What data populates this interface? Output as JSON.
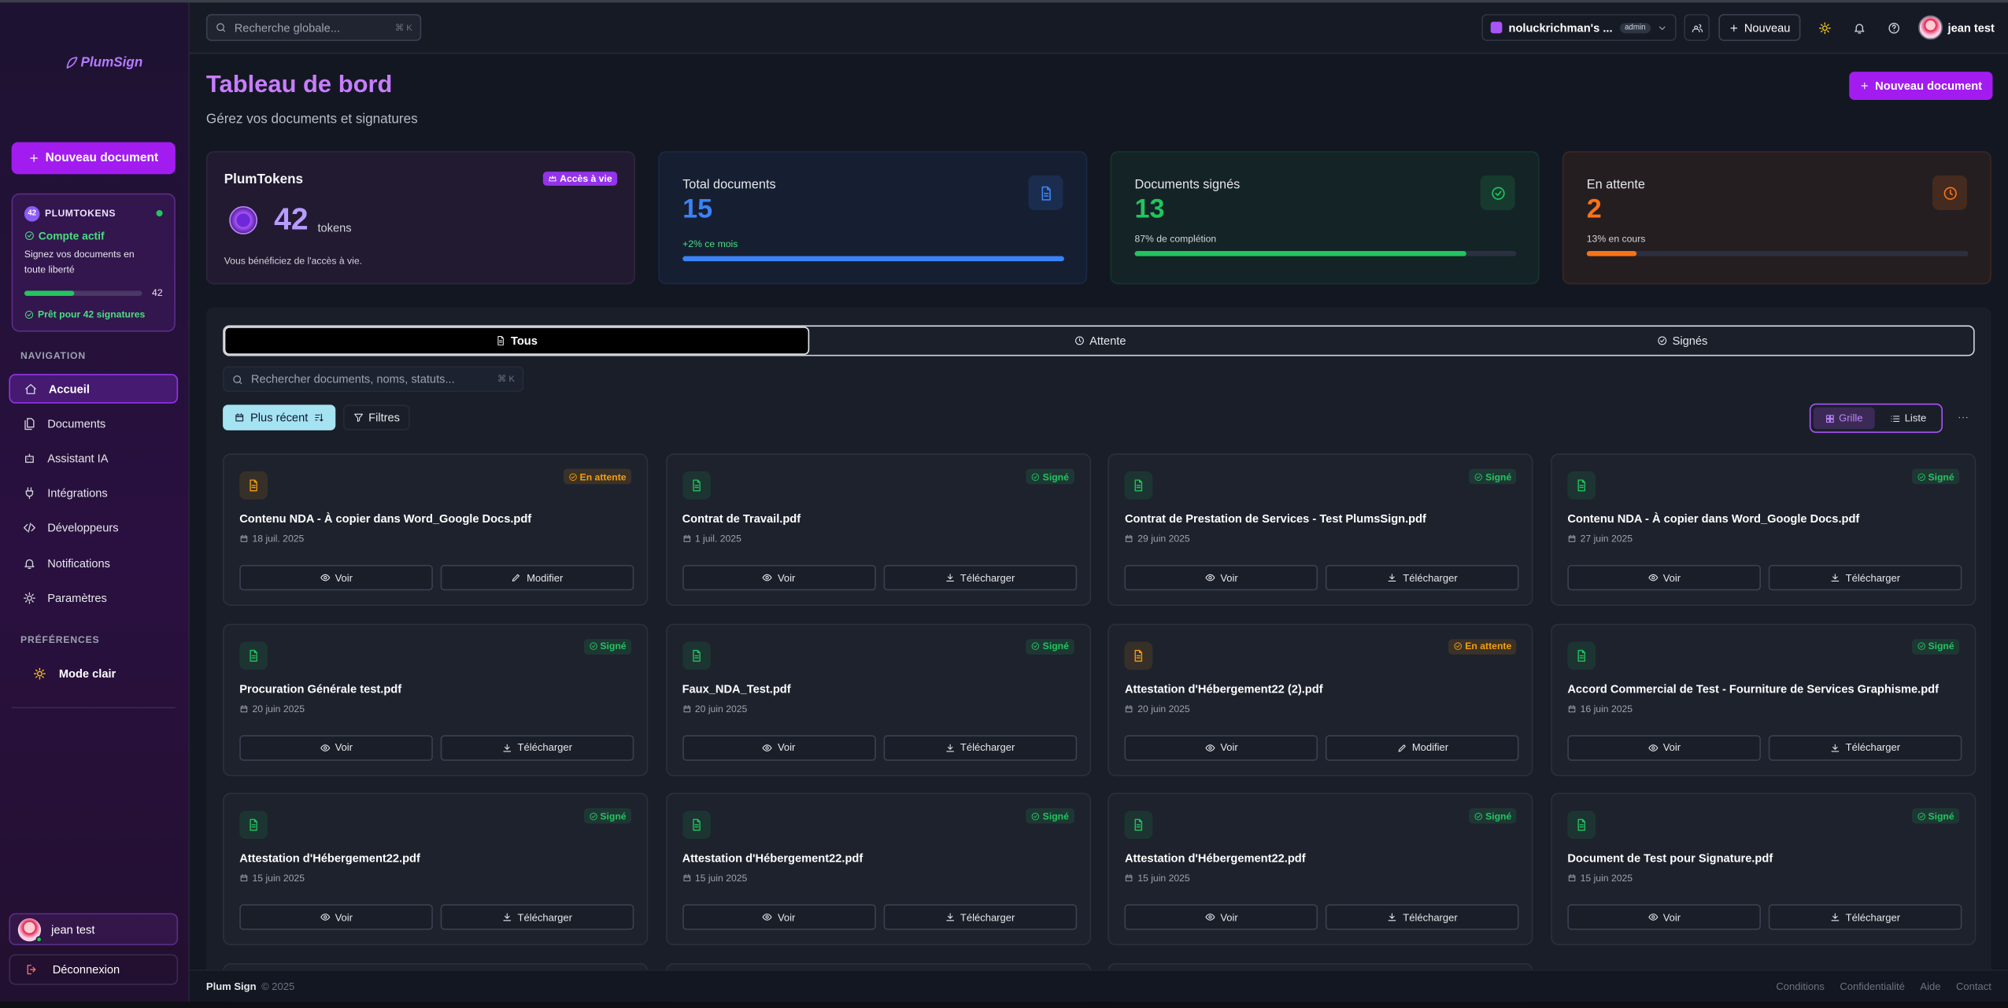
{
  "sidebar": {
    "logo": "PlumSign",
    "new_document": "Nouveau document",
    "tokens": {
      "badge": "42",
      "title": "PLUMTOKENS",
      "status": "Compte actif",
      "description": "Signez vos documents en toute liberté",
      "count": 42,
      "ready": "Prêt pour 42 signatures"
    },
    "nav_title": "NAVIGATION",
    "nav": [
      "Accueil",
      "Documents",
      "Assistant IA",
      "Intégrations",
      "Développeurs",
      "Notifications",
      "Paramètres"
    ],
    "prefs_title": "PRÉFÉRENCES",
    "theme": "Mode clair",
    "user": "jean test",
    "logout": "Déconnexion"
  },
  "topbar": {
    "search": "Recherche globale...",
    "shortcut": "⌘ K",
    "workspace": "noluckrichman's ...",
    "role": "admin",
    "new": "Nouveau",
    "user": "jean test"
  },
  "header": {
    "title": "Tableau de bord",
    "subtitle": "Gérez vos documents et signatures",
    "new_document": "Nouveau document"
  },
  "stats": {
    "tokens": {
      "title": "PlumTokens",
      "badge": "Accès à vie",
      "value": 42,
      "unit": "tokens",
      "note": "Vous bénéficiez de l'accès à vie."
    },
    "cards": [
      {
        "label": "Total documents",
        "value": 15,
        "note": "+2% ce mois",
        "progress": 100,
        "color": "#3b82f6"
      },
      {
        "label": "Documents signés",
        "value": 13,
        "note": "87% de complétion",
        "progress": 87,
        "color": "#22c55e"
      },
      {
        "label": "En attente",
        "value": 2,
        "note": "13% en cours",
        "progress": 13,
        "color": "#f97316"
      }
    ]
  },
  "tabs": [
    "Tous",
    "Attente",
    "Signés"
  ],
  "search": {
    "placeholder": "Rechercher documents, noms, statuts...",
    "shortcut": "⌘ K"
  },
  "sort": "Plus récent",
  "filters": "Filtres",
  "views": [
    "Grille",
    "Liste"
  ],
  "documents": [
    {
      "status": "En attente",
      "color": "#f59e0b",
      "name": "Contenu NDA - À copier dans Word_Google Docs.pdf",
      "date": "18 juil. 2025",
      "actions": [
        "Voir",
        "Modifier"
      ]
    },
    {
      "status": "Signé",
      "color": "#22c55e",
      "name": "Contrat de Travail.pdf",
      "date": "1 juil. 2025",
      "actions": [
        "Voir",
        "Télécharger"
      ]
    },
    {
      "status": "Signé",
      "color": "#22c55e",
      "name": "Contrat de Prestation de Services - Test PlumsSign.pdf",
      "date": "29 juin 2025",
      "actions": [
        "Voir",
        "Télécharger"
      ]
    },
    {
      "status": "Signé",
      "color": "#22c55e",
      "name": "Contenu NDA - À copier dans Word_Google Docs.pdf",
      "date": "27 juin 2025",
      "actions": [
        "Voir",
        "Télécharger"
      ]
    },
    {
      "status": "Signé",
      "color": "#22c55e",
      "name": "Procuration Générale test.pdf",
      "date": "20 juin 2025",
      "actions": [
        "Voir",
        "Télécharger"
      ]
    },
    {
      "status": "Signé",
      "color": "#22c55e",
      "name": "Faux_NDA_Test.pdf",
      "date": "20 juin 2025",
      "actions": [
        "Voir",
        "Télécharger"
      ]
    },
    {
      "status": "En attente",
      "color": "#f59e0b",
      "name": "Attestation d'Hébergement22 (2).pdf",
      "date": "20 juin 2025",
      "actions": [
        "Voir",
        "Modifier"
      ]
    },
    {
      "status": "Signé",
      "color": "#22c55e",
      "name": "Accord Commercial de Test - Fourniture de Services Graphisme.pdf",
      "date": "16 juin 2025",
      "actions": [
        "Voir",
        "Télécharger"
      ]
    },
    {
      "status": "Signé",
      "color": "#22c55e",
      "name": "Attestation d'Hébergement22.pdf",
      "date": "15 juin 2025",
      "actions": [
        "Voir",
        "Télécharger"
      ]
    },
    {
      "status": "Signé",
      "color": "#22c55e",
      "name": "Attestation d'Hébergement22.pdf",
      "date": "15 juin 2025",
      "actions": [
        "Voir",
        "Télécharger"
      ]
    },
    {
      "status": "Signé",
      "color": "#22c55e",
      "name": "Attestation d'Hébergement22.pdf",
      "date": "15 juin 2025",
      "actions": [
        "Voir",
        "Télécharger"
      ]
    },
    {
      "status": "Signé",
      "color": "#22c55e",
      "name": "Document de Test pour Signature.pdf",
      "date": "15 juin 2025",
      "actions": [
        "Voir",
        "Télécharger"
      ]
    }
  ],
  "footer": {
    "brand": "Plum Sign",
    "copyright": "© 2025",
    "links": [
      "Conditions",
      "Confidentialité",
      "Aide",
      "Contact"
    ]
  }
}
